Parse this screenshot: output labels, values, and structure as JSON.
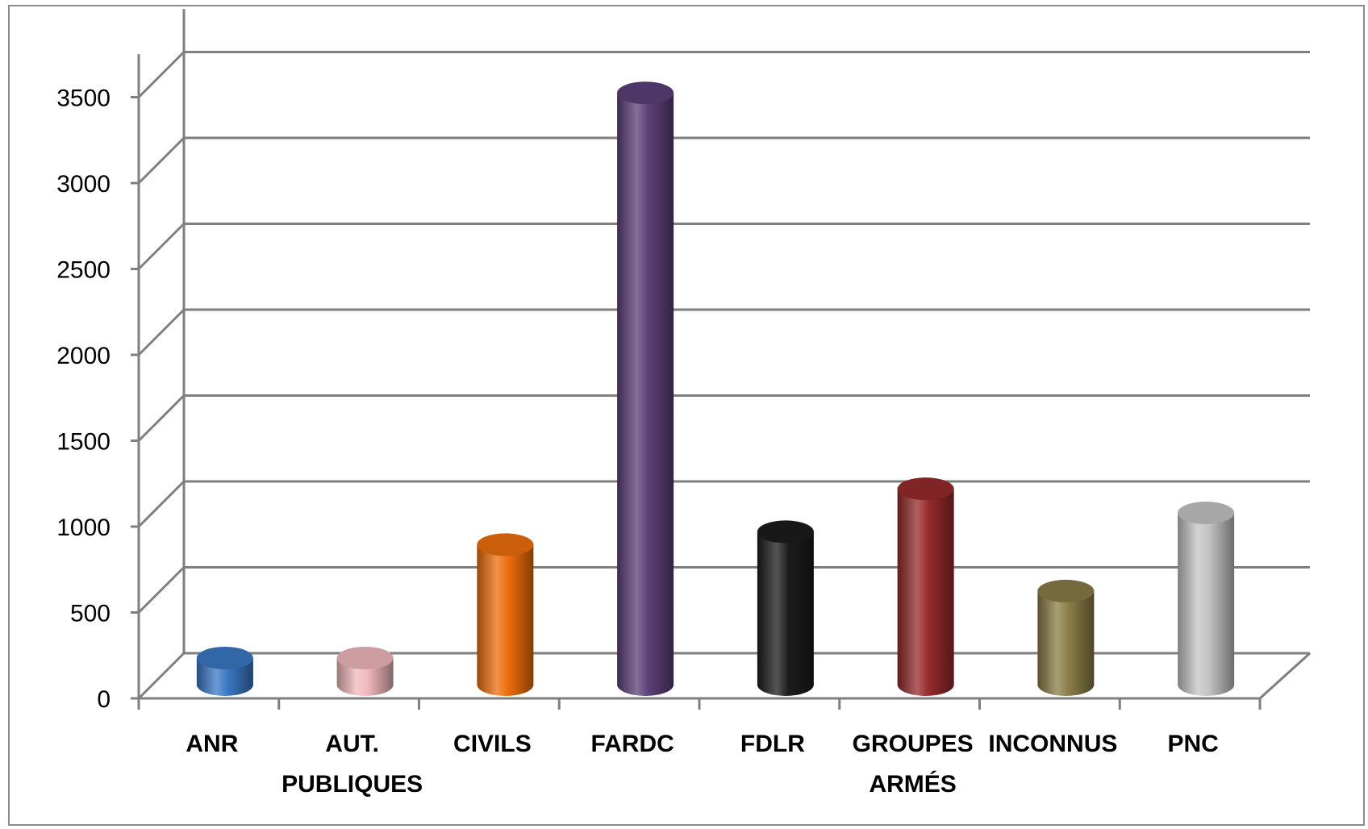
{
  "chart_data": {
    "type": "bar",
    "style": "3d-cylinder",
    "categories": [
      "ANR",
      "AUT. PUBLIQUES",
      "CIVILS",
      "FARDC",
      "FDLR",
      "GROUPES ARMÉS",
      "INCONNUS",
      "PNC"
    ],
    "category_lines": [
      [
        "ANR"
      ],
      [
        "AUT.",
        "PUBLIQUES"
      ],
      [
        "CIVILS"
      ],
      [
        "FARDC"
      ],
      [
        "FDLR"
      ],
      [
        "GROUPES",
        "ARMÉS"
      ],
      [
        "INCONNUS"
      ],
      [
        "PNC"
      ]
    ],
    "values": [
      155,
      155,
      815,
      3445,
      890,
      1140,
      545,
      1000
    ],
    "colors": [
      "#3a78c4",
      "#f0b8bc",
      "#ee6e0c",
      "#5c4078",
      "#1c1c1c",
      "#962a2c",
      "#8a7d48",
      "#c4c4c4"
    ],
    "yticks": [
      0,
      500,
      1000,
      1500,
      2000,
      2500,
      3000,
      3500
    ],
    "ylim": [
      0,
      3750
    ],
    "grid": true,
    "legend": "none",
    "title": "",
    "xlabel": "",
    "ylabel": ""
  }
}
